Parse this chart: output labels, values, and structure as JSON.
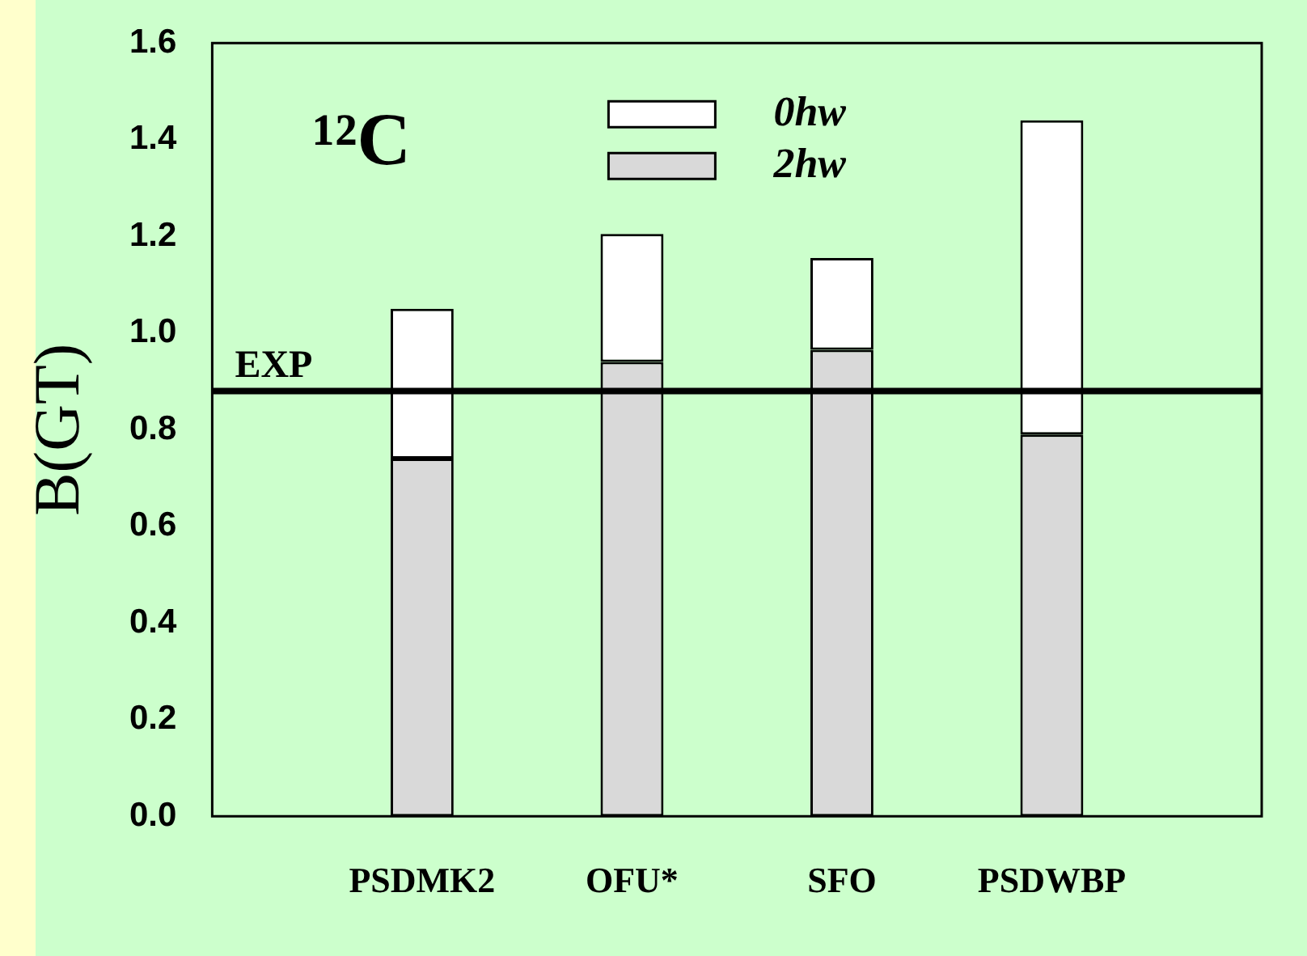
{
  "chart_data": {
    "type": "bar",
    "stacked": true,
    "ylabel": "B(GT)",
    "annotations": [
      "¹²C"
    ],
    "categories": [
      "PSDMK2",
      "OFU*",
      "SFO",
      "PSDWBP"
    ],
    "series": [
      {
        "name": "2hw",
        "color": "#d9d9d9",
        "values": [
          0.74,
          0.94,
          0.965,
          0.79
        ]
      },
      {
        "name": "0hw",
        "color": "#ffffff",
        "values": [
          0.31,
          0.265,
          0.19,
          0.65
        ]
      }
    ],
    "ylim": [
      0,
      1.6
    ],
    "yticks": [
      {
        "value": 0,
        "label": "0.0"
      },
      0.2,
      0.4,
      0.6,
      0.8,
      {
        "value": 1,
        "label": "1.0"
      },
      1.2,
      1.4,
      1.6
    ],
    "ref_lines": [
      {
        "axis": "y",
        "value": 0.88,
        "label": "EXP",
        "color": "#000000"
      }
    ],
    "legend": "top",
    "grid": false
  }
}
